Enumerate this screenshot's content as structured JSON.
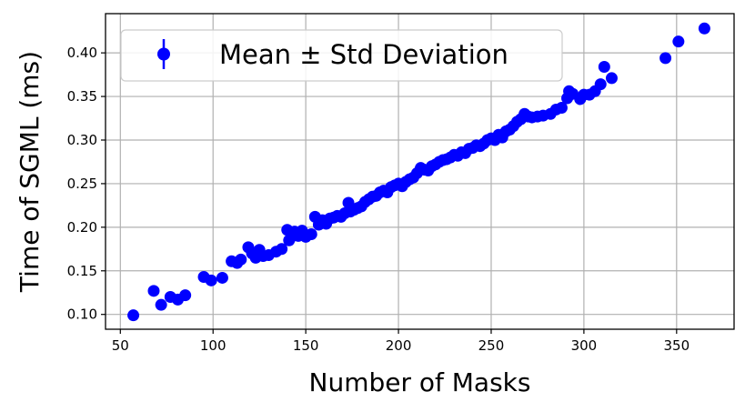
{
  "chart_data": {
    "type": "scatter",
    "xlabel": "Number of Masks",
    "ylabel": "Time of SGML (ms)",
    "xlim": [
      42,
      381
    ],
    "ylim": [
      0.083,
      0.445
    ],
    "xticks": [
      50,
      100,
      150,
      200,
      250,
      300,
      350
    ],
    "yticks": [
      0.1,
      0.15,
      0.2,
      0.25,
      0.3,
      0.35,
      0.4
    ],
    "xtick_labels": [
      "50",
      "100",
      "150",
      "200",
      "250",
      "300",
      "350"
    ],
    "ytick_labels": [
      "0.10",
      "0.15",
      "0.20",
      "0.25",
      "0.30",
      "0.35",
      "0.40"
    ],
    "grid": true,
    "legend_position": "top-left",
    "series": [
      {
        "name": "Mean ± Std Deviation",
        "color": "#0000ff",
        "marker": "circle-with-errorbar",
        "points": [
          [
            57,
            0.099
          ],
          [
            68,
            0.127
          ],
          [
            72,
            0.111
          ],
          [
            77,
            0.12
          ],
          [
            81,
            0.117
          ],
          [
            85,
            0.122
          ],
          [
            95,
            0.143
          ],
          [
            99,
            0.139
          ],
          [
            105,
            0.142
          ],
          [
            110,
            0.161
          ],
          [
            113,
            0.159
          ],
          [
            115,
            0.163
          ],
          [
            119,
            0.177
          ],
          [
            121,
            0.17
          ],
          [
            123,
            0.165
          ],
          [
            125,
            0.174
          ],
          [
            127,
            0.167
          ],
          [
            130,
            0.168
          ],
          [
            134,
            0.172
          ],
          [
            137,
            0.175
          ],
          [
            140,
            0.197
          ],
          [
            141,
            0.185
          ],
          [
            143,
            0.19
          ],
          [
            144,
            0.195
          ],
          [
            146,
            0.19
          ],
          [
            148,
            0.196
          ],
          [
            150,
            0.189
          ],
          [
            153,
            0.192
          ],
          [
            155,
            0.212
          ],
          [
            157,
            0.203
          ],
          [
            159,
            0.208
          ],
          [
            161,
            0.204
          ],
          [
            163,
            0.21
          ],
          [
            165,
            0.211
          ],
          [
            167,
            0.213
          ],
          [
            169,
            0.212
          ],
          [
            171,
            0.216
          ],
          [
            173,
            0.228
          ],
          [
            174,
            0.218
          ],
          [
            176,
            0.22
          ],
          [
            178,
            0.222
          ],
          [
            180,
            0.224
          ],
          [
            182,
            0.229
          ],
          [
            184,
            0.232
          ],
          [
            186,
            0.235
          ],
          [
            188,
            0.236
          ],
          [
            190,
            0.24
          ],
          [
            192,
            0.242
          ],
          [
            194,
            0.24
          ],
          [
            196,
            0.246
          ],
          [
            198,
            0.248
          ],
          [
            200,
            0.25
          ],
          [
            202,
            0.247
          ],
          [
            204,
            0.252
          ],
          [
            206,
            0.255
          ],
          [
            208,
            0.257
          ],
          [
            210,
            0.262
          ],
          [
            212,
            0.268
          ],
          [
            214,
            0.266
          ],
          [
            216,
            0.265
          ],
          [
            218,
            0.27
          ],
          [
            220,
            0.272
          ],
          [
            222,
            0.275
          ],
          [
            224,
            0.277
          ],
          [
            226,
            0.278
          ],
          [
            228,
            0.28
          ],
          [
            230,
            0.283
          ],
          [
            232,
            0.282
          ],
          [
            234,
            0.286
          ],
          [
            236,
            0.285
          ],
          [
            238,
            0.29
          ],
          [
            240,
            0.291
          ],
          [
            242,
            0.294
          ],
          [
            244,
            0.293
          ],
          [
            246,
            0.296
          ],
          [
            248,
            0.3
          ],
          [
            250,
            0.302
          ],
          [
            252,
            0.3
          ],
          [
            254,
            0.306
          ],
          [
            256,
            0.303
          ],
          [
            258,
            0.31
          ],
          [
            260,
            0.312
          ],
          [
            262,
            0.316
          ],
          [
            264,
            0.321
          ],
          [
            266,
            0.324
          ],
          [
            268,
            0.33
          ],
          [
            270,
            0.327
          ],
          [
            272,
            0.326
          ],
          [
            275,
            0.327
          ],
          [
            278,
            0.328
          ],
          [
            282,
            0.33
          ],
          [
            285,
            0.335
          ],
          [
            288,
            0.337
          ],
          [
            291,
            0.348
          ],
          [
            292,
            0.356
          ],
          [
            294,
            0.353
          ],
          [
            298,
            0.347
          ],
          [
            300,
            0.352
          ],
          [
            303,
            0.352
          ],
          [
            306,
            0.356
          ],
          [
            309,
            0.364
          ],
          [
            311,
            0.384
          ],
          [
            315,
            0.371
          ],
          [
            344,
            0.394
          ],
          [
            351,
            0.413
          ],
          [
            365,
            0.428
          ]
        ]
      }
    ]
  }
}
